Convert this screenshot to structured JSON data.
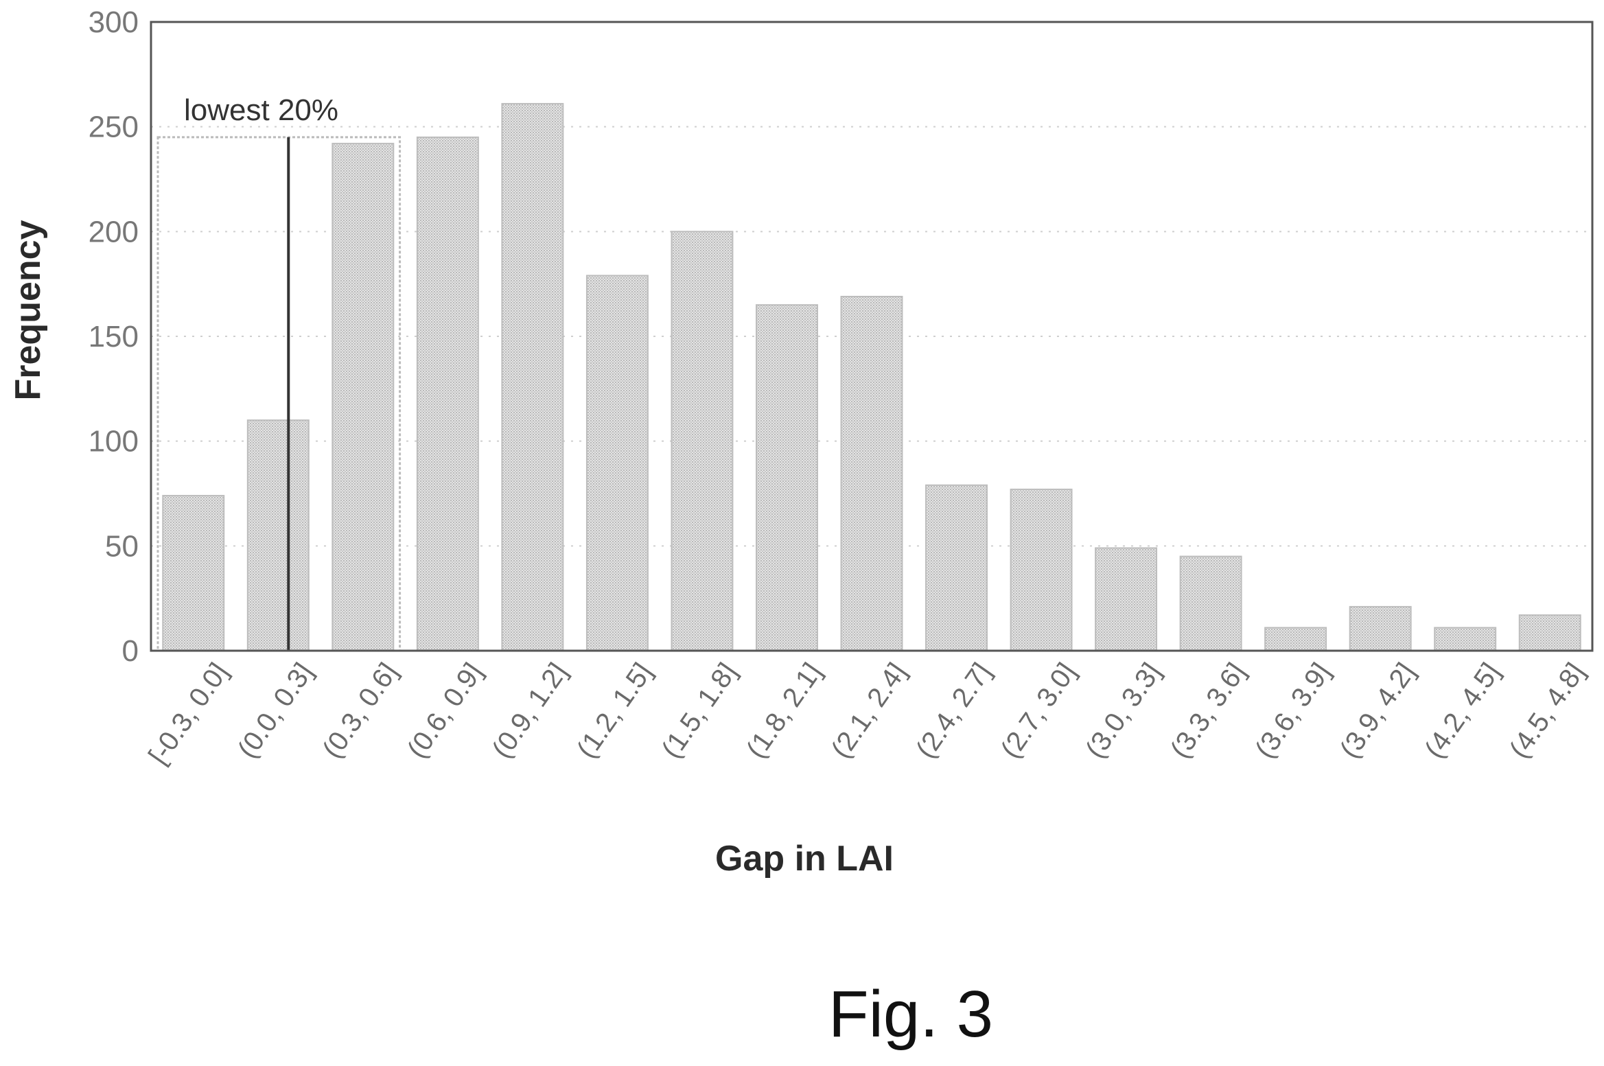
{
  "chart_data": {
    "type": "bar",
    "title": "",
    "xlabel": "Gap in LAI",
    "ylabel": "Frequency",
    "ylim": [
      0,
      300
    ],
    "yticks": [
      "0",
      "50",
      "100",
      "150",
      "200",
      "250",
      "300"
    ],
    "categories": [
      "[-0.3, 0.0]",
      "(0.0, 0.3]",
      "(0.3, 0.6]",
      "(0.6, 0.9]",
      "(0.9, 1.2]",
      "(1.2, 1.5]",
      "(1.5, 1.8]",
      "(1.8, 2.1]",
      "(2.1, 2.4]",
      "(2.4, 2.7]",
      "(2.7, 3.0]",
      "(3.0, 3.3]",
      "(3.3, 3.6]",
      "(3.6, 3.9]",
      "(3.9, 4.2]",
      "(4.2, 4.5]",
      "(4.5, 4.8]"
    ],
    "values": [
      74,
      110,
      242,
      245,
      261,
      179,
      200,
      165,
      169,
      79,
      77,
      49,
      45,
      11,
      21,
      11,
      17
    ],
    "grid": true,
    "annotation": {
      "text": "lowest 20%",
      "x_value": 0.15,
      "height_value": 245,
      "range": [
        -0.3,
        0.6
      ]
    },
    "bar_color": "#d6d6d6",
    "frame_color": "#555555"
  },
  "figure": {
    "label": "Fig. 3"
  }
}
